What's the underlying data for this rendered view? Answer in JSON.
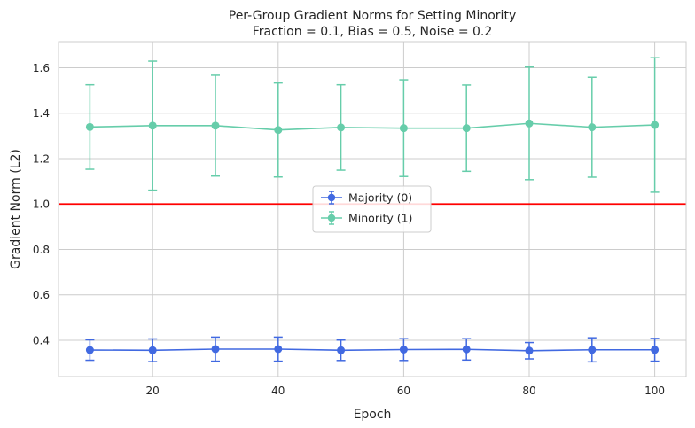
{
  "chart_data": {
    "type": "line",
    "title": "Per-Group Gradient Norms for Setting Minority",
    "subtitle": "Fraction = 0.1, Bias = 0.5, Noise = 0.2",
    "xlabel": "Epoch",
    "ylabel": "Gradient Norm (L2)",
    "xlim": [
      5,
      105
    ],
    "ylim": [
      0.24,
      1.715
    ],
    "x_ticks": [
      20,
      40,
      60,
      80,
      100
    ],
    "y_ticks": [
      0.4,
      0.6,
      0.8,
      1.0,
      1.2,
      1.4,
      1.6
    ],
    "x_tick_labels": [
      "20",
      "40",
      "60",
      "80",
      "100"
    ],
    "y_tick_labels": [
      "0.4",
      "0.6",
      "0.8",
      "1.0",
      "1.2",
      "1.4",
      "1.6"
    ],
    "grid": true,
    "legend": "center",
    "x": [
      10,
      20,
      30,
      40,
      50,
      60,
      70,
      80,
      90,
      100
    ],
    "series": [
      {
        "name": "Majority (0)",
        "color": "#4169e1",
        "values": [
          0.357,
          0.356,
          0.361,
          0.361,
          0.356,
          0.359,
          0.36,
          0.354,
          0.358,
          0.358
        ],
        "errors": [
          0.045,
          0.05,
          0.053,
          0.053,
          0.045,
          0.048,
          0.047,
          0.036,
          0.053,
          0.05
        ]
      },
      {
        "name": "Minority (1)",
        "color": "#66cdaa",
        "values": [
          1.339,
          1.345,
          1.345,
          1.326,
          1.337,
          1.334,
          1.334,
          1.355,
          1.338,
          1.348
        ],
        "errors": [
          0.186,
          0.284,
          0.222,
          0.207,
          0.188,
          0.213,
          0.19,
          0.248,
          0.22,
          0.296
        ]
      }
    ],
    "reference_line": {
      "y": 1.0,
      "color": "#ff0000"
    }
  }
}
